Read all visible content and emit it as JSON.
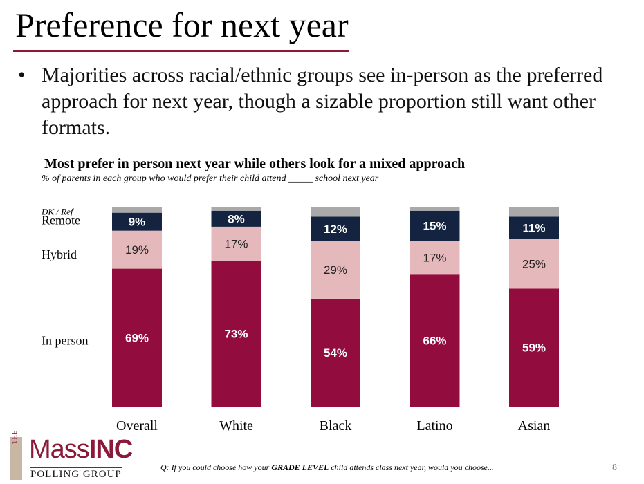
{
  "slide": {
    "title": "Preference for next year",
    "bullet": "Majorities across racial/ethnic groups see in-person as the preferred approach for next year, though a sizable proportion still want other formats.",
    "footer_question_prefix": "Q: If you could choose how your ",
    "footer_question_emph": "GRADE LEVEL",
    "footer_question_suffix": " child attends class next year, would you choose...",
    "page_number": "8"
  },
  "logo": {
    "the": "THE",
    "mass": "Mass",
    "inc": "INC",
    "sub": "POLLING GROUP"
  },
  "colors": {
    "in_person": "#930c3e",
    "hybrid": "#e5b9bb",
    "remote": "#14233f",
    "dk_ref": "#a9a9a9",
    "title_rule": "#8b1a3a"
  },
  "chart_data": {
    "type": "bar",
    "stacked": true,
    "title": "Most prefer in person next year while others look for a mixed approach",
    "subtitle": "% of parents in each group who would prefer their child attend _____ school next year",
    "categories": [
      "Overall",
      "White",
      "Black",
      "Latino",
      "Asian"
    ],
    "series": [
      {
        "name": "In person",
        "values": [
          69,
          73,
          54,
          66,
          59
        ],
        "labels": [
          "69%",
          "73%",
          "54%",
          "66%",
          "59%"
        ]
      },
      {
        "name": "Hybrid",
        "values": [
          19,
          17,
          29,
          17,
          25
        ],
        "labels": [
          "19%",
          "17%",
          "29%",
          "17%",
          "25%"
        ]
      },
      {
        "name": "Remote",
        "values": [
          9,
          8,
          12,
          15,
          11
        ],
        "labels": [
          "9%",
          "8%",
          "12%",
          "15%",
          "11%"
        ]
      },
      {
        "name": "DK / Ref",
        "values": [
          3,
          2,
          5,
          2,
          5
        ],
        "labels": [
          "",
          "",
          "",
          "",
          ""
        ]
      }
    ],
    "ylim": [
      0,
      100
    ],
    "grid": false,
    "legend": "left"
  }
}
